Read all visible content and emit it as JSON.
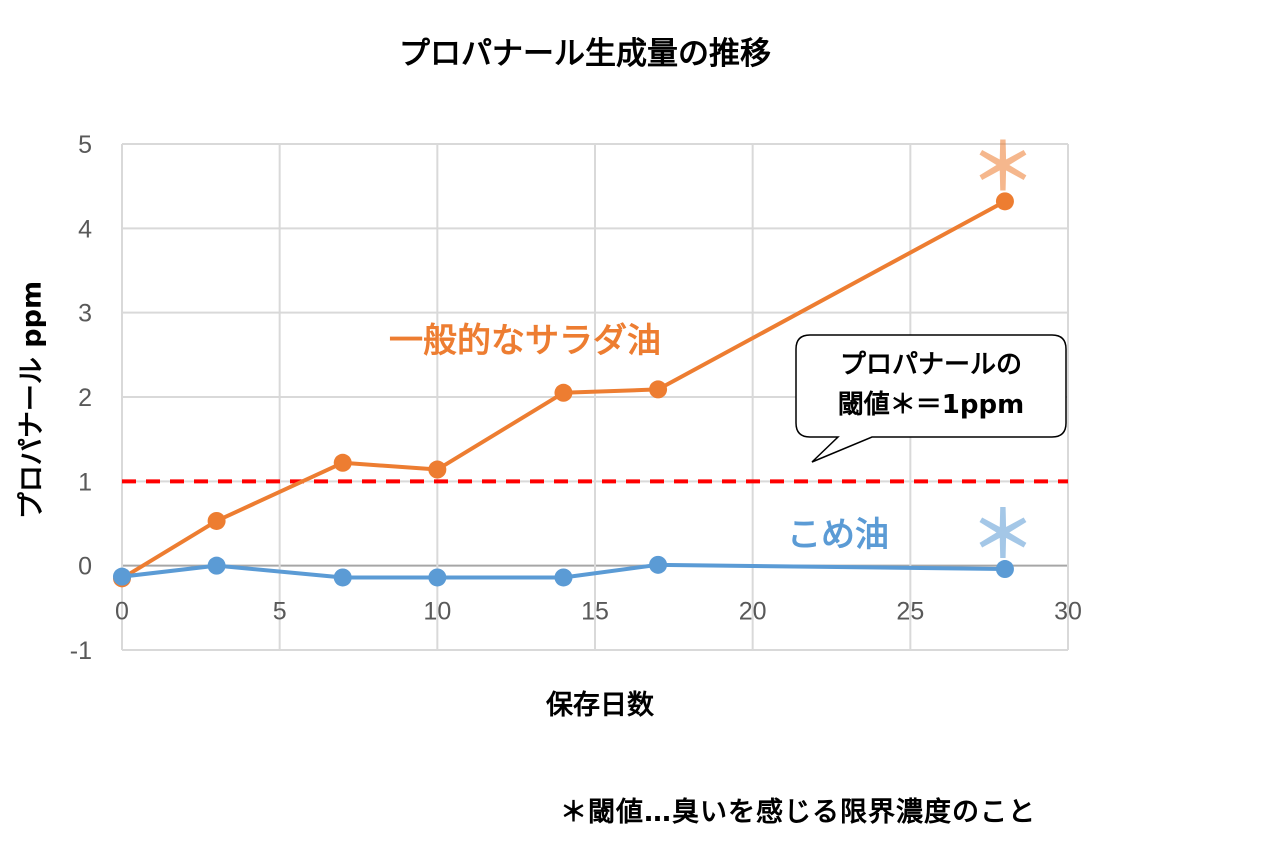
{
  "chart_data": {
    "type": "line",
    "title": "プロパナール生成量の推移",
    "xlabel": "保存日数",
    "ylabel": "プロパナール ppm",
    "xlim": [
      0,
      30
    ],
    "ylim": [
      -1,
      5
    ],
    "x_ticks": [
      "0",
      "5",
      "10",
      "15",
      "20",
      "25",
      "30"
    ],
    "y_ticks": [
      "-1",
      "0",
      "1",
      "2",
      "3",
      "4",
      "5"
    ],
    "grid": true,
    "series": [
      {
        "name": "一般的なサラダ油",
        "color": "#ED7D31",
        "x": [
          0,
          3,
          7,
          10,
          14,
          17,
          28
        ],
        "values": [
          -0.15,
          0.53,
          1.22,
          1.14,
          2.05,
          2.09,
          4.32
        ],
        "end_marker": "＊"
      },
      {
        "name": "こめ油",
        "color": "#5B9BD5",
        "x": [
          0,
          3,
          7,
          10,
          14,
          17,
          28
        ],
        "values": [
          -0.13,
          0.0,
          -0.14,
          -0.14,
          -0.14,
          0.01,
          -0.04
        ],
        "end_marker": "＊"
      }
    ],
    "threshold": {
      "value": 1.0,
      "color": "#FF0000",
      "style": "dashed",
      "callout_lines": [
        "プロパナールの",
        "閾値＊＝1ppm"
      ]
    },
    "footnote": "＊閾値…臭いを感じる限界濃度のこと"
  }
}
